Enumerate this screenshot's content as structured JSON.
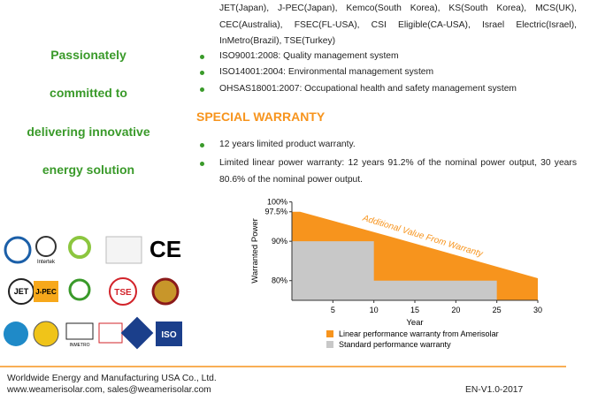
{
  "tagline": [
    "Passionately",
    "committed to",
    "delivering innovative",
    "energy solution"
  ],
  "certifications": "JET(Japan), J-PEC(Japan), Kemco(South Korea), KS(South Korea), MCS(UK), CEC(Australia), FSEC(FL-USA), CSI Eligible(CA-USA), Israel Electric(Israel), InMetro(Brazil), TSE(Turkey)",
  "management_bullets": [
    "ISO9001:2008: Quality management system",
    "ISO14001:2004: Environmental management system",
    "OHSAS18001:2007: Occupational health and safety management system"
  ],
  "warranty_heading": "SPECIAL WARRANTY",
  "warranty_bullets": [
    "12 years limited product warranty.",
    "Limited linear power warranty: 12 years 91.2% of the nominal power output, 30 years 80.6% of the nominal power output."
  ],
  "logos": [
    "Intertek",
    "CE",
    "JET",
    "J-PEC",
    "TSE",
    "INMETRO",
    "ISO"
  ],
  "chart_data": {
    "type": "area",
    "x_label": "Year",
    "y_label": "Warranted Power",
    "annotation": "Additional Value From Warranty",
    "xlim": [
      0,
      30
    ],
    "xticks": [
      5,
      10,
      15,
      20,
      25,
      30
    ],
    "ylim": [
      75,
      100
    ],
    "yticks": [
      {
        "value": 100,
        "label": "100%"
      },
      {
        "value": 97.5,
        "label": "97.5%"
      },
      {
        "value": 90,
        "label": "90%"
      },
      {
        "value": 80,
        "label": "80%"
      }
    ],
    "series": [
      {
        "name": "Linear performance warranty from Amerisolar",
        "color": "#f7941d",
        "x": [
          0,
          1,
          12,
          30
        ],
        "values": [
          97.5,
          97.5,
          91.2,
          80.6
        ]
      },
      {
        "name": "Standard performance warranty",
        "color": "#c8c8c8",
        "x": [
          0,
          10,
          10,
          25
        ],
        "values": [
          90,
          90,
          80,
          80
        ]
      }
    ]
  },
  "footer": {
    "company": "Worldwide Energy and Manufacturing USA Co., Ltd.",
    "contact": "www.weamerisolar.com, sales@weamerisolar.com",
    "version": "EN-V1.0-2017"
  }
}
